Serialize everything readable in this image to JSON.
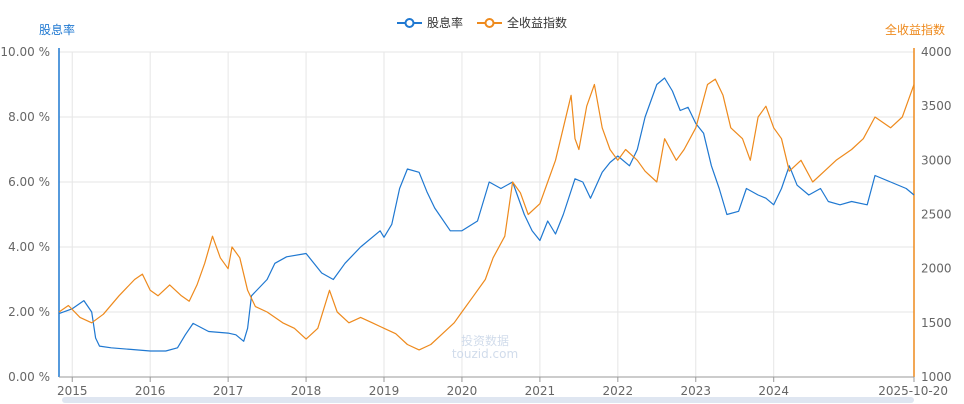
{
  "chart_data": {
    "type": "line",
    "legend_position": "top-center",
    "grid": true,
    "y_left": {
      "title": "股息率",
      "ticks": [
        "0.00 %",
        "2.00 %",
        "4.00 %",
        "6.00 %",
        "8.00 %",
        "10.00 %"
      ],
      "range": [
        0,
        10
      ],
      "color": "#1f78d1"
    },
    "y_right": {
      "title": "全收益指数",
      "ticks": [
        "1000",
        "1500",
        "2000",
        "2500",
        "3000",
        "3500",
        "4000"
      ],
      "range": [
        1000,
        4000
      ],
      "color": "#ee8a1d"
    },
    "x_axis": {
      "ticks": [
        {
          "label": "2015",
          "t": 2015.0
        },
        {
          "label": "2016",
          "t": 2016.0
        },
        {
          "label": "2017",
          "t": 2017.0
        },
        {
          "label": "2018",
          "t": 2018.0
        },
        {
          "label": "2019",
          "t": 2019.0
        },
        {
          "label": "2020",
          "t": 2020.0
        },
        {
          "label": "2021",
          "t": 2021.0
        },
        {
          "label": "2022",
          "t": 2022.0
        },
        {
          "label": "2023",
          "t": 2023.0
        },
        {
          "label": "2024",
          "t": 2024.0
        },
        {
          "label": "2025-10-20",
          "t": 2025.8
        }
      ],
      "range": [
        2014.83,
        2025.8
      ]
    },
    "series": [
      {
        "name": "股息率",
        "axis": "left",
        "color": "#1f78d1",
        "points": [
          [
            2014.83,
            1.95
          ],
          [
            2015.0,
            2.1
          ],
          [
            2015.15,
            2.35
          ],
          [
            2015.25,
            2.0
          ],
          [
            2015.3,
            1.2
          ],
          [
            2015.35,
            0.95
          ],
          [
            2015.5,
            0.9
          ],
          [
            2015.75,
            0.85
          ],
          [
            2016.0,
            0.8
          ],
          [
            2016.2,
            0.8
          ],
          [
            2016.35,
            0.9
          ],
          [
            2016.45,
            1.3
          ],
          [
            2016.55,
            1.65
          ],
          [
            2016.75,
            1.4
          ],
          [
            2017.0,
            1.35
          ],
          [
            2017.1,
            1.3
          ],
          [
            2017.2,
            1.1
          ],
          [
            2017.25,
            1.5
          ],
          [
            2017.3,
            2.5
          ],
          [
            2017.5,
            3.0
          ],
          [
            2017.6,
            3.5
          ],
          [
            2017.75,
            3.7
          ],
          [
            2018.0,
            3.8
          ],
          [
            2018.1,
            3.5
          ],
          [
            2018.2,
            3.2
          ],
          [
            2018.35,
            3.0
          ],
          [
            2018.5,
            3.5
          ],
          [
            2018.7,
            4.0
          ],
          [
            2018.95,
            4.5
          ],
          [
            2019.0,
            4.3
          ],
          [
            2019.1,
            4.7
          ],
          [
            2019.2,
            5.8
          ],
          [
            2019.3,
            6.4
          ],
          [
            2019.45,
            6.3
          ],
          [
            2019.55,
            5.7
          ],
          [
            2019.65,
            5.2
          ],
          [
            2019.85,
            4.5
          ],
          [
            2020.0,
            4.5
          ],
          [
            2020.2,
            4.8
          ],
          [
            2020.35,
            6.0
          ],
          [
            2020.5,
            5.8
          ],
          [
            2020.65,
            6.0
          ],
          [
            2020.8,
            5.0
          ],
          [
            2020.9,
            4.5
          ],
          [
            2021.0,
            4.2
          ],
          [
            2021.1,
            4.8
          ],
          [
            2021.2,
            4.4
          ],
          [
            2021.3,
            5.0
          ],
          [
            2021.45,
            6.1
          ],
          [
            2021.55,
            6.0
          ],
          [
            2021.65,
            5.5
          ],
          [
            2021.8,
            6.3
          ],
          [
            2021.9,
            6.6
          ],
          [
            2022.0,
            6.8
          ],
          [
            2022.15,
            6.5
          ],
          [
            2022.25,
            7.0
          ],
          [
            2022.35,
            8.0
          ],
          [
            2022.5,
            9.0
          ],
          [
            2022.6,
            9.2
          ],
          [
            2022.7,
            8.8
          ],
          [
            2022.8,
            8.2
          ],
          [
            2022.9,
            8.3
          ],
          [
            2023.0,
            7.8
          ],
          [
            2023.1,
            7.5
          ],
          [
            2023.2,
            6.5
          ],
          [
            2023.3,
            5.8
          ],
          [
            2023.4,
            5.0
          ],
          [
            2023.55,
            5.1
          ],
          [
            2023.65,
            5.8
          ],
          [
            2023.8,
            5.6
          ],
          [
            2023.9,
            5.5
          ],
          [
            2024.0,
            5.3
          ],
          [
            2024.1,
            5.8
          ],
          [
            2024.2,
            6.5
          ],
          [
            2024.3,
            5.9
          ],
          [
            2024.45,
            5.6
          ],
          [
            2024.6,
            5.8
          ],
          [
            2024.7,
            5.4
          ],
          [
            2024.85,
            5.3
          ],
          [
            2025.0,
            5.4
          ],
          [
            2025.2,
            5.3
          ],
          [
            2025.3,
            6.2
          ],
          [
            2025.5,
            6.0
          ],
          [
            2025.7,
            5.8
          ],
          [
            2025.8,
            5.6
          ]
        ]
      },
      {
        "name": "全收益指数",
        "axis": "right",
        "color": "#ee8a1d",
        "points": [
          [
            2014.83,
            1600
          ],
          [
            2014.95,
            1660
          ],
          [
            2015.1,
            1550
          ],
          [
            2015.25,
            1500
          ],
          [
            2015.4,
            1580
          ],
          [
            2015.6,
            1750
          ],
          [
            2015.8,
            1900
          ],
          [
            2015.9,
            1950
          ],
          [
            2016.0,
            1800
          ],
          [
            2016.1,
            1750
          ],
          [
            2016.25,
            1850
          ],
          [
            2016.4,
            1750
          ],
          [
            2016.5,
            1700
          ],
          [
            2016.6,
            1850
          ],
          [
            2016.7,
            2050
          ],
          [
            2016.8,
            2300
          ],
          [
            2016.9,
            2100
          ],
          [
            2017.0,
            2000
          ],
          [
            2017.05,
            2200
          ],
          [
            2017.15,
            2100
          ],
          [
            2017.25,
            1800
          ],
          [
            2017.35,
            1650
          ],
          [
            2017.5,
            1600
          ],
          [
            2017.7,
            1500
          ],
          [
            2017.85,
            1450
          ],
          [
            2018.0,
            1350
          ],
          [
            2018.15,
            1450
          ],
          [
            2018.3,
            1800
          ],
          [
            2018.4,
            1600
          ],
          [
            2018.55,
            1500
          ],
          [
            2018.7,
            1550
          ],
          [
            2018.85,
            1500
          ],
          [
            2019.0,
            1450
          ],
          [
            2019.15,
            1400
          ],
          [
            2019.3,
            1300
          ],
          [
            2019.45,
            1250
          ],
          [
            2019.6,
            1300
          ],
          [
            2019.75,
            1400
          ],
          [
            2019.9,
            1500
          ],
          [
            2020.0,
            1600
          ],
          [
            2020.15,
            1750
          ],
          [
            2020.3,
            1900
          ],
          [
            2020.4,
            2100
          ],
          [
            2020.55,
            2300
          ],
          [
            2020.65,
            2800
          ],
          [
            2020.75,
            2700
          ],
          [
            2020.85,
            2500
          ],
          [
            2021.0,
            2600
          ],
          [
            2021.1,
            2800
          ],
          [
            2021.2,
            3000
          ],
          [
            2021.3,
            3300
          ],
          [
            2021.4,
            3600
          ],
          [
            2021.45,
            3200
          ],
          [
            2021.5,
            3100
          ],
          [
            2021.6,
            3500
          ],
          [
            2021.7,
            3700
          ],
          [
            2021.8,
            3300
          ],
          [
            2021.9,
            3100
          ],
          [
            2022.0,
            3000
          ],
          [
            2022.1,
            3100
          ],
          [
            2022.25,
            3000
          ],
          [
            2022.35,
            2900
          ],
          [
            2022.5,
            2800
          ],
          [
            2022.6,
            3200
          ],
          [
            2022.75,
            3000
          ],
          [
            2022.85,
            3100
          ],
          [
            2023.0,
            3300
          ],
          [
            2023.15,
            3700
          ],
          [
            2023.25,
            3750
          ],
          [
            2023.35,
            3600
          ],
          [
            2023.45,
            3300
          ],
          [
            2023.6,
            3200
          ],
          [
            2023.7,
            3000
          ],
          [
            2023.8,
            3400
          ],
          [
            2023.9,
            3500
          ],
          [
            2024.0,
            3300
          ],
          [
            2024.1,
            3200
          ],
          [
            2024.2,
            2900
          ],
          [
            2024.35,
            3000
          ],
          [
            2024.5,
            2800
          ],
          [
            2024.65,
            2900
          ],
          [
            2024.8,
            3000
          ],
          [
            2025.0,
            3100
          ],
          [
            2025.15,
            3200
          ],
          [
            2025.3,
            3400
          ],
          [
            2025.5,
            3300
          ],
          [
            2025.65,
            3400
          ],
          [
            2025.75,
            3600
          ],
          [
            2025.8,
            3700
          ]
        ]
      }
    ],
    "watermark": {
      "line1": "投资数据",
      "line2": "touzid.com"
    }
  }
}
